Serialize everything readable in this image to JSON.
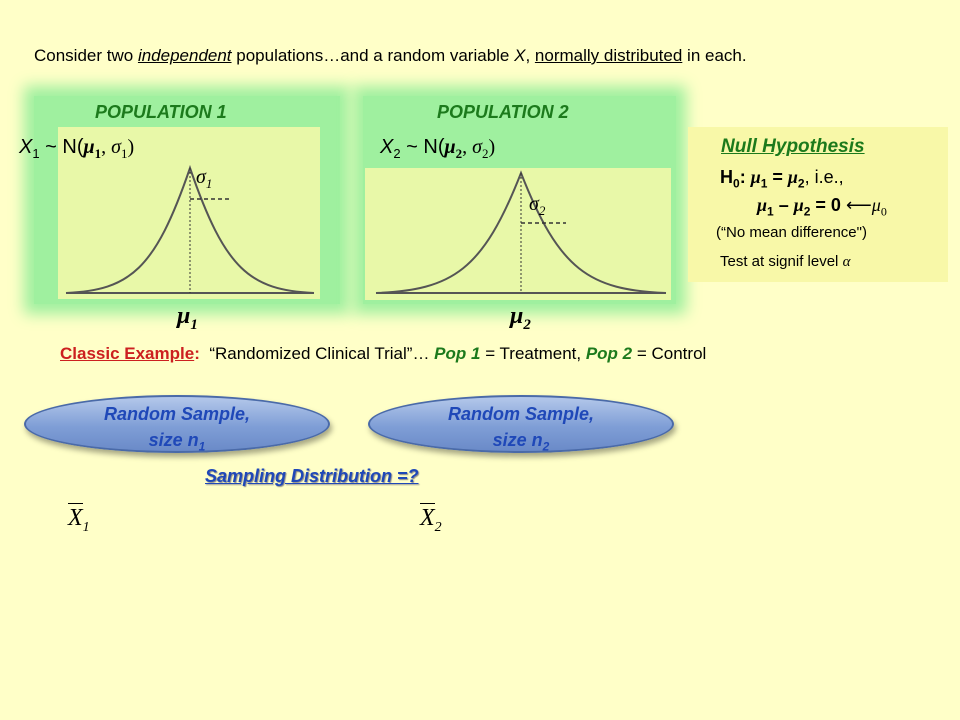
{
  "intro": {
    "part1": "Consider two ",
    "independent": "independent",
    "part2": " populations…and a random variable ",
    "var": "X",
    "part3": ", ",
    "normal": "normally distributed",
    "part4": " in each."
  },
  "population1": {
    "title": "POPULATION 1",
    "dist_prefix": "X",
    "dist_sub": "1",
    "dist_mid": " ~ N(",
    "mu": "μ",
    "mu_sub": "1",
    "comma": ", ",
    "sigma": "σ",
    "sigma_sub": "1",
    "close": ")",
    "curve_sigma": "σ",
    "curve_sigma_sub": "1",
    "mean_label": "μ",
    "mean_sub": "1"
  },
  "population2": {
    "title": "POPULATION 2",
    "dist_prefix": "X",
    "dist_sub": "2",
    "dist_mid": " ~ N(",
    "mu": "μ",
    "mu_sub": "2",
    "comma": ", ",
    "sigma": "σ",
    "sigma_sub": "2",
    "close": ")",
    "curve_sigma": "σ",
    "curve_sigma_sub": "2",
    "mean_label": "μ",
    "mean_sub": "2"
  },
  "null_hypothesis": {
    "title": "Null Hypothesis",
    "h": "H",
    "h_sub": "0",
    "colon": ": ",
    "mu1": "μ",
    "mu1_sub": "1",
    "eq": " = ",
    "mu2": "μ",
    "mu2_sub": "2",
    "ie": ",  i.e.,",
    "diff_mu1": "μ",
    "diff_mu1_sub": "1",
    "minus": " – ",
    "diff_mu2": "μ",
    "diff_mu2_sub": "2",
    "eq_zero": " = 0",
    "arrow": "⟵",
    "mu0": "μ",
    "mu0_sub": "0",
    "no_mean": "(“No mean difference\")",
    "level_text": "Test at signif level ",
    "alpha": "α"
  },
  "classic": {
    "label": "Classic Example",
    "colon": ":",
    "quote": "“Randomized Clinical Trial”… ",
    "pop1": "Pop 1",
    "pop1_eq": " = Treatment, ",
    "pop2": "Pop 2",
    "pop2_eq": " = Control"
  },
  "samples": [
    {
      "line1": "Random Sample,",
      "line2": "size n",
      "sub": "1"
    },
    {
      "line1": "Random Sample,",
      "line2": "size n",
      "sub": "2"
    }
  ],
  "sampling_distribution": "Sampling Distribution =?",
  "means": [
    {
      "symbol": "X",
      "sub": "1"
    },
    {
      "symbol": "X",
      "sub": "2"
    }
  ],
  "colors": {
    "background": "#ffffc8",
    "population_box": "#9ff09f",
    "curve_panel": "#e8f8a8",
    "title_green": "#1c7a1c",
    "blue_text": "#1f48b8",
    "red_text": "#cc2020"
  }
}
